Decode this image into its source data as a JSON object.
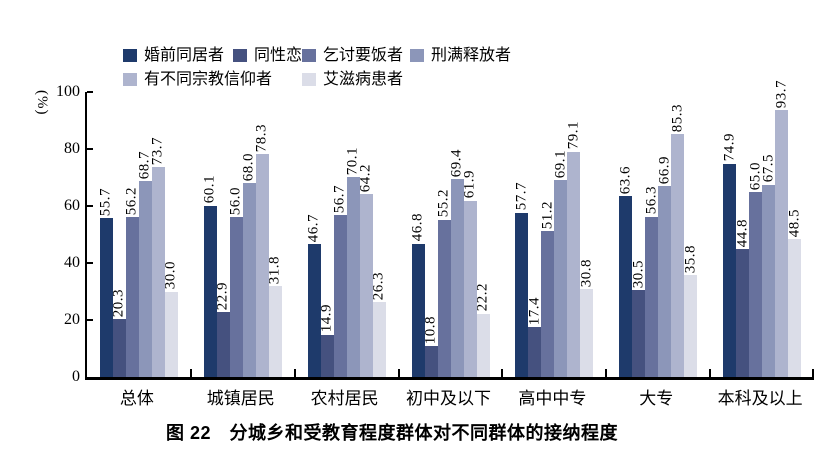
{
  "figure": {
    "caption": "图 22　分城乡和受教育程度群体对不同群体的接纳程度",
    "ylabel": "(%)"
  },
  "chart_data": {
    "type": "bar",
    "title": "图 22　分城乡和受教育程度群体对不同群体的接纳程度",
    "xlabel": "",
    "ylabel": "(%)",
    "ylim": [
      0,
      100
    ],
    "yticks": [
      0,
      20,
      40,
      60,
      80,
      100
    ],
    "grid": false,
    "legend_position": "top",
    "value_labels": "rotated-90",
    "categories": [
      "总体",
      "城镇居民",
      "农村居民",
      "初中及以下",
      "高中中专",
      "大专",
      "本科及以上"
    ],
    "series": [
      {
        "name": "婚前同居者",
        "color": "#1e3a6b",
        "values": [
          55.7,
          60.1,
          46.7,
          46.8,
          57.7,
          63.6,
          74.9
        ]
      },
      {
        "name": "同性恋",
        "color": "#45517f",
        "values": [
          20.3,
          22.9,
          14.9,
          10.8,
          17.4,
          30.5,
          44.8
        ]
      },
      {
        "name": "乞讨要饭者",
        "color": "#67719d",
        "values": [
          56.2,
          56.0,
          56.7,
          55.2,
          51.2,
          56.3,
          65.0
        ]
      },
      {
        "name": "刑满释放者",
        "color": "#8c96b9",
        "values": [
          68.7,
          68.0,
          70.1,
          69.4,
          69.1,
          66.9,
          67.5
        ]
      },
      {
        "name": "有不同宗教信仰者",
        "color": "#aeb4ce",
        "values": [
          73.7,
          78.3,
          64.2,
          61.9,
          79.1,
          85.3,
          93.7
        ]
      },
      {
        "name": "艾滋病患者",
        "color": "#dbdde8",
        "values": [
          30.0,
          31.8,
          26.3,
          22.2,
          30.8,
          35.8,
          48.5
        ]
      }
    ]
  }
}
